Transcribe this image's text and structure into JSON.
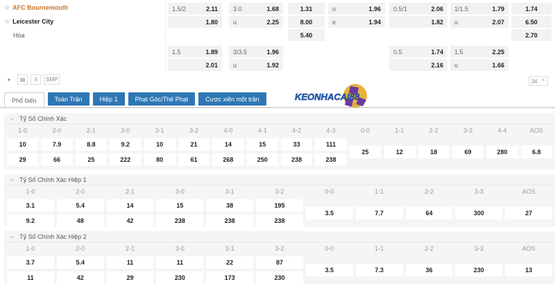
{
  "match": {
    "home": "AFC Bournemouth",
    "away": "Leicester City",
    "draw": "Hòa",
    "home_color": "#c8752a"
  },
  "odds_block1": [
    {
      "h1": "1.5/2",
      "v1": "2.11",
      "h2": "",
      "v2": "1.80"
    },
    {
      "h1": "3.0",
      "v1": "1.68",
      "h2": "u",
      "v2": "2.25"
    },
    {
      "v1": "1.31",
      "v2": "8.00",
      "v3": "5.40"
    },
    {
      "h1": "o",
      "v1": "1.96",
      "h2": "e",
      "v2": "1.94"
    },
    {
      "h1": "0.5/1",
      "v1": "2.06",
      "h2": "",
      "v2": "1.82"
    },
    {
      "h1": "1/1.5",
      "v1": "1.79",
      "h2": "u",
      "v2": "2.07"
    },
    {
      "v1": "1.74",
      "v2": "6.50",
      "v3": "2.70"
    }
  ],
  "odds_block2": [
    {
      "h1": "1.5",
      "v1": "1.89",
      "h2": "",
      "v2": "2.01"
    },
    {
      "h1": "3/3.5",
      "v1": "1.96",
      "h2": "u",
      "v2": "1.92"
    },
    {
      "h1": "0.5",
      "v1": "1.74",
      "h2": "",
      "v2": "2.16"
    },
    {
      "h1": "1.5",
      "v1": "2.25",
      "h2": "u",
      "v2": "1.66"
    }
  ],
  "toolbar": {
    "smp": "SMP",
    "page": "34",
    "icons": [
      "play-icon",
      "list-icon",
      "chart-icon"
    ]
  },
  "tabs": [
    {
      "label": "Phổ biến",
      "active": true
    },
    {
      "label": "Toàn Trận"
    },
    {
      "label": "Hiệp 1"
    },
    {
      "label": "Phạt Góc/Thẻ Phạt"
    },
    {
      "label": "Cược xiên một trận"
    }
  ],
  "logo_text": "KEONHACAI88",
  "accent": "#2e77b5",
  "sections": [
    {
      "title": "Tỷ Số Chính Xác",
      "cols": [
        [
          "1-0",
          "10",
          "29"
        ],
        [
          "2-0",
          "7.9",
          "66"
        ],
        [
          "2-1",
          "8.8",
          "25"
        ],
        [
          "3-0",
          "9.2",
          "222"
        ],
        [
          "3-1",
          "10",
          "80"
        ],
        [
          "3-2",
          "21",
          "61"
        ],
        [
          "4-0",
          "14",
          "268"
        ],
        [
          "4-1",
          "15",
          "250"
        ],
        [
          "4-2",
          "33",
          "238"
        ],
        [
          "4-3",
          "111",
          "238"
        ],
        [
          "0-0",
          "25"
        ],
        [
          "1-1",
          "12"
        ],
        [
          "2-2",
          "18"
        ],
        [
          "3-3",
          "69"
        ],
        [
          "4-4",
          "280"
        ],
        [
          "AOS",
          "6.8"
        ]
      ]
    },
    {
      "title": "Tỷ Số Chính Xác Hiệp 1",
      "cols": [
        [
          "1-0",
          "3.1",
          "9.2"
        ],
        [
          "2-0",
          "5.4",
          "48"
        ],
        [
          "2-1",
          "14",
          "42"
        ],
        [
          "3-0",
          "15",
          "238"
        ],
        [
          "3-1",
          "38",
          "238"
        ],
        [
          "3-2",
          "195",
          "238"
        ],
        [
          "0-0",
          "3.5"
        ],
        [
          "1-1",
          "7.7"
        ],
        [
          "2-2",
          "64"
        ],
        [
          "3-3",
          "300"
        ],
        [
          "AOS",
          "27"
        ]
      ]
    },
    {
      "title": "Tỷ Số Chính Xác Hiệp 2",
      "cols": [
        [
          "1-0",
          "3.7",
          "11"
        ],
        [
          "2-0",
          "5.4",
          "42"
        ],
        [
          "2-1",
          "11",
          "29"
        ],
        [
          "3-0",
          "11",
          "230"
        ],
        [
          "3-1",
          "22",
          "173"
        ],
        [
          "3-2",
          "87",
          "230"
        ],
        [
          "0-0",
          "3.5"
        ],
        [
          "1-1",
          "7.3"
        ],
        [
          "2-2",
          "36"
        ],
        [
          "3-3",
          "230"
        ],
        [
          "AOS",
          "13"
        ]
      ]
    }
  ]
}
